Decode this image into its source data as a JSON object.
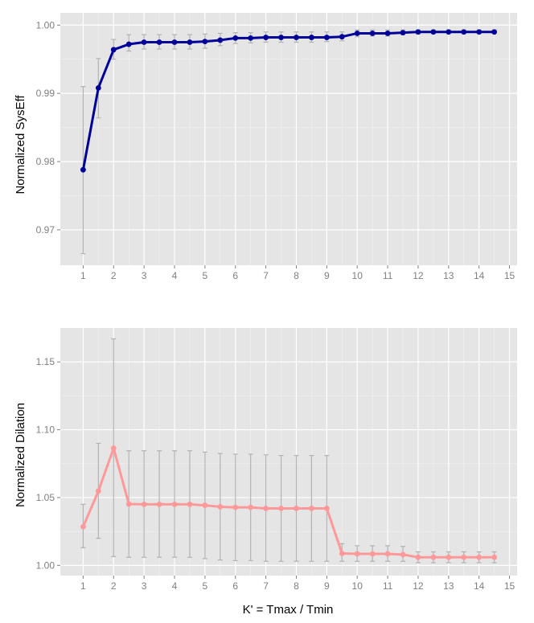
{
  "chart_data": [
    {
      "type": "line",
      "ylabel": "Normalized SysEff",
      "xlabel": "",
      "xlim": [
        0.25,
        15.25
      ],
      "ylim": [
        0.9648,
        1.0018
      ],
      "x_ticks": [
        1,
        2,
        3,
        4,
        5,
        6,
        7,
        8,
        9,
        10,
        11,
        12,
        13,
        14,
        15
      ],
      "y_ticks": [
        0.97,
        0.98,
        0.99,
        1.0
      ],
      "y_tick_labels": [
        "0.97",
        "0.98",
        "0.99",
        "1.00"
      ],
      "color": "#000099",
      "series": [
        {
          "x": [
            1,
            1.5,
            2,
            2.5,
            3,
            3.5,
            4,
            4.5,
            5,
            5.5,
            6,
            6.5,
            7,
            7.5,
            8,
            8.5,
            9,
            9.5,
            10,
            10.5,
            11,
            11.5,
            12,
            12.5,
            13,
            13.5,
            14,
            14.5
          ],
          "y": [
            0.9788,
            0.9908,
            0.9964,
            0.9972,
            0.9975,
            0.9975,
            0.9975,
            0.9975,
            0.9976,
            0.9978,
            0.9981,
            0.9981,
            0.9982,
            0.9982,
            0.9982,
            0.9982,
            0.9982,
            0.9983,
            0.9988,
            0.9988,
            0.9988,
            0.9989,
            0.999,
            0.999,
            0.999,
            0.999,
            0.999,
            0.999
          ],
          "err_low": [
            0.9665,
            0.9864,
            0.995,
            0.9962,
            0.9965,
            0.9965,
            0.9965,
            0.9965,
            0.9966,
            0.997,
            0.9973,
            0.9974,
            0.9975,
            0.9975,
            0.9975,
            0.9975,
            0.9976,
            0.9977,
            0.9983,
            0.9984,
            0.9984,
            0.9986,
            0.9987,
            0.9988,
            0.9988,
            0.9988,
            0.9988,
            0.9988
          ],
          "err_high": [
            0.991,
            0.9951,
            0.9979,
            0.9986,
            0.9986,
            0.9986,
            0.9986,
            0.9986,
            0.9987,
            0.9988,
            0.9989,
            0.9989,
            0.999,
            0.999,
            0.999,
            0.999,
            0.999,
            0.999,
            0.9993,
            0.9993,
            0.9993,
            0.9993,
            0.9993,
            0.9993,
            0.9993,
            0.9993,
            0.9993,
            0.9993
          ]
        }
      ]
    },
    {
      "type": "line",
      "ylabel": "Normalized Dilation",
      "xlabel": "K' = Tmax / Tmin",
      "xlim": [
        0.25,
        15.25
      ],
      "ylim": [
        0.9925,
        1.175
      ],
      "x_ticks": [
        1,
        2,
        3,
        4,
        5,
        6,
        7,
        8,
        9,
        10,
        11,
        12,
        13,
        14,
        15
      ],
      "y_ticks": [
        1.0,
        1.05,
        1.1,
        1.15
      ],
      "y_tick_labels": [
        "1.00",
        "1.05",
        "1.10",
        "1.15"
      ],
      "color": "#ff9999",
      "series": [
        {
          "x": [
            1,
            1.5,
            2,
            2.5,
            3,
            3.5,
            4,
            4.5,
            5,
            5.5,
            6,
            6.5,
            7,
            7.5,
            8,
            8.5,
            9,
            9.5,
            10,
            10.5,
            11,
            11.5,
            12,
            12.5,
            13,
            13.5,
            14,
            14.5
          ],
          "y": [
            1.0285,
            1.0548,
            1.0864,
            1.0452,
            1.045,
            1.045,
            1.045,
            1.045,
            1.0443,
            1.0432,
            1.0428,
            1.0428,
            1.042,
            1.042,
            1.042,
            1.042,
            1.042,
            1.0088,
            1.0085,
            1.0085,
            1.0085,
            1.008,
            1.006,
            1.006,
            1.006,
            1.006,
            1.006,
            1.006
          ],
          "err_low": [
            1.013,
            1.02,
            1.0065,
            1.006,
            1.006,
            1.006,
            1.006,
            1.006,
            1.005,
            1.004,
            1.0035,
            1.0035,
            1.003,
            1.003,
            1.003,
            1.003,
            1.003,
            1.003,
            1.003,
            1.003,
            1.003,
            1.003,
            1.002,
            1.002,
            1.002,
            1.002,
            1.002,
            1.002
          ],
          "err_high": [
            1.045,
            1.09,
            1.167,
            1.0845,
            1.0845,
            1.0845,
            1.0845,
            1.0845,
            1.0835,
            1.0825,
            1.082,
            1.082,
            1.0815,
            1.081,
            1.081,
            1.081,
            1.081,
            1.016,
            1.0145,
            1.0145,
            1.0145,
            1.014,
            1.01,
            1.01,
            1.01,
            1.01,
            1.01,
            1.01
          ]
        }
      ]
    }
  ]
}
